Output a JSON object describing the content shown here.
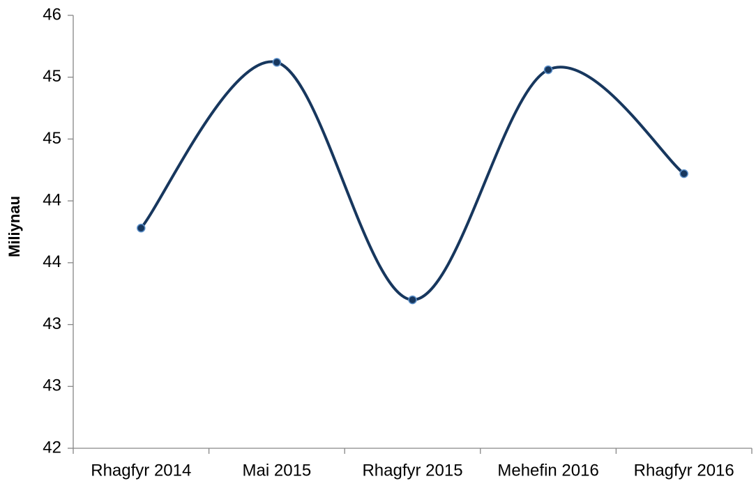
{
  "chart_data": {
    "type": "line",
    "y_label": "Miliynau",
    "categories": [
      "Rhagfyr 2014",
      "Mai 2015",
      "Rhagfyr 2015",
      "Mehefin 2016",
      "Rhagfyr 2016"
    ],
    "series": [
      {
        "name": "Miliynau",
        "color": "#17375e",
        "values": [
          43.78,
          45.12,
          43.2,
          45.06,
          44.22
        ]
      }
    ],
    "ylim": [
      42,
      45.5
    ],
    "yticks": [
      42,
      {
        "value": 42.5,
        "label": "43"
      },
      43,
      {
        "value": 43.5,
        "label": "44"
      },
      44,
      {
        "value": 44.5,
        "label": "45"
      },
      45,
      {
        "value": 45.5,
        "label": "46"
      }
    ],
    "grid": false,
    "smooth": true
  }
}
